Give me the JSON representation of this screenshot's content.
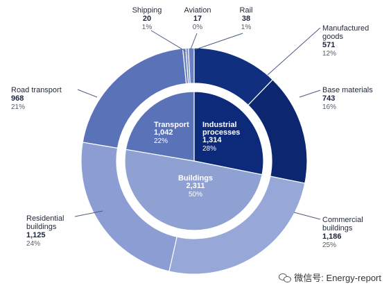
{
  "chart_data": {
    "type": "pie",
    "inner": [
      {
        "name": "Industrial processes",
        "name_lines": [
          "Industrial",
          "processes"
        ],
        "value": "1,314",
        "value_num": 1314,
        "pct": "28%",
        "color": "#0d2a7a"
      },
      {
        "name": "Buildings",
        "name_lines": [
          "Buildings"
        ],
        "value": "2,311",
        "value_num": 2311,
        "pct": "50%",
        "color": "#8fa1d3"
      },
      {
        "name": "Transport",
        "name_lines": [
          "Transport"
        ],
        "value": "1,042",
        "value_num": 1042,
        "pct": "22%",
        "color": "#5a72b8"
      }
    ],
    "outer": [
      {
        "name": "Manufactured goods",
        "name_lines": [
          "Manufactured",
          "goods"
        ],
        "value": "571",
        "value_num": 571,
        "pct": "12%",
        "color": "#10307f",
        "group": "Industrial processes"
      },
      {
        "name": "Base materials",
        "name_lines": [
          "Base materials"
        ],
        "value": "743",
        "value_num": 743,
        "pct": "16%",
        "color": "#0c2670",
        "group": "Industrial processes"
      },
      {
        "name": "Commercial buildings",
        "name_lines": [
          "Commercial",
          "buildings"
        ],
        "value": "1,186",
        "value_num": 1186,
        "pct": "25%",
        "color": "#97a8d8",
        "group": "Buildings"
      },
      {
        "name": "Residential buildings",
        "name_lines": [
          "Residential",
          "buildings"
        ],
        "value": "1,125",
        "value_num": 1125,
        "pct": "24%",
        "color": "#8b9dd2",
        "group": "Buildings"
      },
      {
        "name": "Road transport",
        "name_lines": [
          "Road transport"
        ],
        "value": "968",
        "value_num": 968,
        "pct": "21%",
        "color": "#5a72b8",
        "group": "Transport"
      },
      {
        "name": "Shipping",
        "name_lines": [
          "Shipping"
        ],
        "value": "20",
        "value_num": 20,
        "pct": "1%",
        "color": "#6b82c2",
        "group": "Transport"
      },
      {
        "name": "Aviation",
        "name_lines": [
          "Aviation"
        ],
        "value": "17",
        "value_num": 17,
        "pct": "0%",
        "color": "#7b90cb",
        "group": "Transport"
      },
      {
        "name": "Rail",
        "name_lines": [
          "Rail"
        ],
        "value": "38",
        "value_num": 38,
        "pct": "1%",
        "color": "#6a80c0",
        "group": "Transport"
      }
    ]
  },
  "watermark": {
    "icon": "wechat-icon",
    "text": "微信号: Energy-report"
  }
}
